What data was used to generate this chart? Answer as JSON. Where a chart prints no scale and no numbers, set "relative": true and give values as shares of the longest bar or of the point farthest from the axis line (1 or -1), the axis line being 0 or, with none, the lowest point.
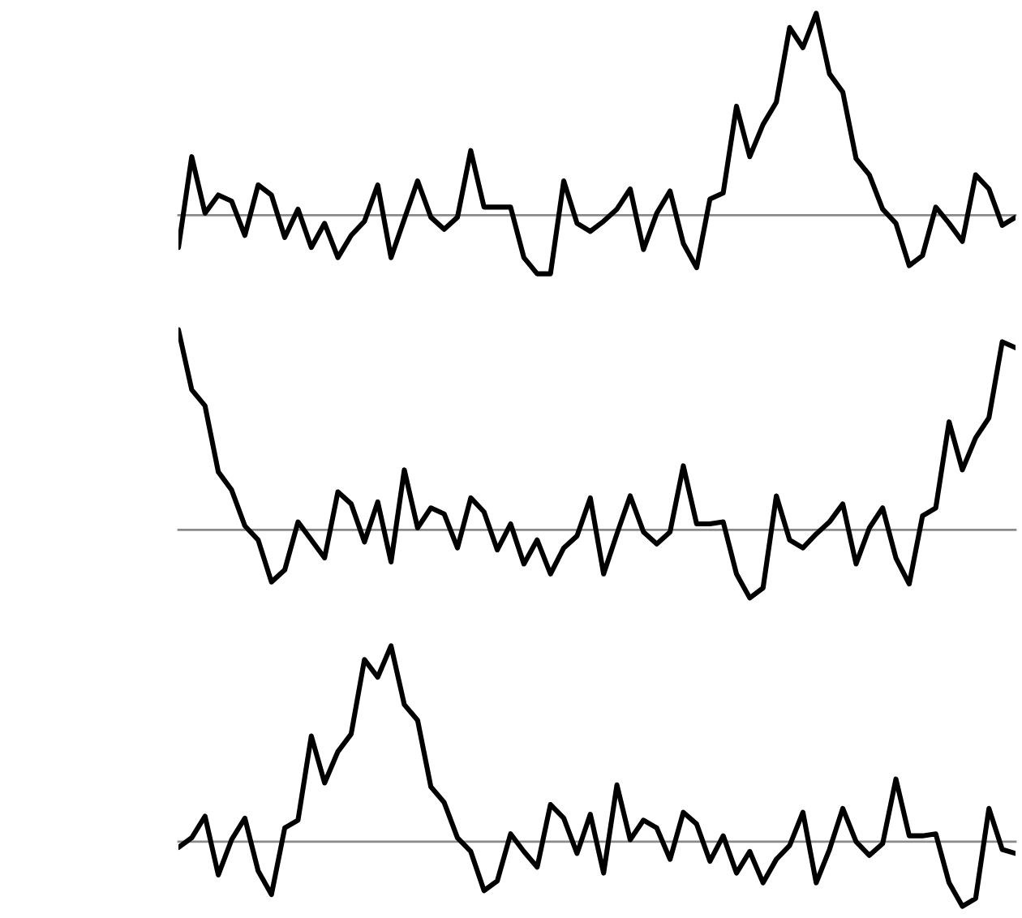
{
  "chart_data": [
    {
      "type": "line",
      "relative": true,
      "color": "#000000",
      "categories": [
        null,
        null,
        null,
        null,
        null,
        null,
        null,
        null,
        null,
        null,
        null,
        null,
        null,
        null,
        null,
        null,
        null,
        null,
        null,
        null,
        null,
        null,
        null,
        null,
        null,
        null,
        null,
        null,
        null,
        null,
        null,
        null,
        null,
        null,
        null,
        null,
        null,
        null,
        null,
        null,
        null,
        null,
        null,
        null,
        null,
        null,
        null,
        null,
        null,
        null,
        null,
        null,
        null,
        null,
        null,
        null,
        null,
        null,
        null,
        null,
        null,
        null,
        null,
        null
      ],
      "values": [
        -0.16,
        0.29,
        0.01,
        0.1,
        0.07,
        -0.1,
        0.15,
        0.1,
        -0.11,
        0.03,
        -0.16,
        -0.04,
        -0.21,
        -0.1,
        -0.03,
        0.15,
        -0.21,
        -0.02,
        0.17,
        -0.01,
        -0.07,
        -0.01,
        0.32,
        0.04,
        0.04,
        0.04,
        -0.21,
        -0.29,
        -0.29,
        0.17,
        -0.04,
        -0.08,
        -0.03,
        0.03,
        0.13,
        -0.17,
        0.01,
        0.12,
        -0.14,
        -0.26,
        0.08,
        0.11,
        0.54,
        0.29,
        0.45,
        0.56,
        0.93,
        0.83,
        1,
        0.7,
        0.61,
        0.28,
        0.2,
        0.03,
        -0.04,
        -0.25,
        -0.2,
        0.04,
        -0.04,
        -0.13,
        0.2,
        0.13,
        -0.05,
        -0.01
      ]
    },
    {
      "type": "line",
      "relative": true,
      "color": "#000000",
      "categories": [
        null,
        null,
        null,
        null,
        null,
        null,
        null,
        null,
        null,
        null,
        null,
        null,
        null,
        null,
        null,
        null,
        null,
        null,
        null,
        null,
        null,
        null,
        null,
        null,
        null,
        null,
        null,
        null,
        null,
        null,
        null,
        null,
        null,
        null,
        null,
        null,
        null,
        null,
        null,
        null,
        null,
        null,
        null,
        null,
        null,
        null,
        null,
        null,
        null,
        null,
        null,
        null,
        null,
        null,
        null,
        null,
        null,
        null,
        null,
        null,
        null,
        null,
        null,
        null
      ],
      "values": [
        1,
        0.7,
        0.62,
        0.29,
        0.2,
        0.02,
        -0.05,
        -0.26,
        -0.2,
        0.04,
        -0.05,
        -0.14,
        0.19,
        0.13,
        -0.06,
        0.14,
        -0.16,
        0.3,
        0.01,
        0.11,
        0.08,
        -0.09,
        0.16,
        0.09,
        -0.1,
        0.03,
        -0.17,
        -0.05,
        -0.22,
        -0.09,
        -0.03,
        0.16,
        -0.22,
        -0.02,
        0.17,
        -0.01,
        -0.07,
        -0.01,
        0.32,
        0.03,
        0.03,
        0.04,
        -0.22,
        -0.34,
        -0.29,
        0.17,
        -0.05,
        -0.09,
        -0.02,
        0.04,
        0.13,
        -0.17,
        0.01,
        0.11,
        -0.14,
        -0.27,
        0.07,
        0.11,
        0.54,
        0.3,
        0.46,
        0.56,
        0.94,
        0.91
      ]
    },
    {
      "type": "line",
      "relative": true,
      "color": "#000000",
      "categories": [
        null,
        null,
        null,
        null,
        null,
        null,
        null,
        null,
        null,
        null,
        null,
        null,
        null,
        null,
        null,
        null,
        null,
        null,
        null,
        null,
        null,
        null,
        null,
        null,
        null,
        null,
        null,
        null,
        null,
        null,
        null,
        null,
        null,
        null,
        null,
        null,
        null,
        null,
        null,
        null,
        null,
        null,
        null,
        null,
        null,
        null,
        null,
        null,
        null,
        null,
        null,
        null,
        null,
        null,
        null,
        null,
        null,
        null,
        null,
        null,
        null,
        null,
        null,
        null
      ],
      "values": [
        -0.03,
        0.02,
        0.13,
        -0.17,
        0.01,
        0.12,
        -0.15,
        -0.27,
        0.07,
        0.11,
        0.54,
        0.3,
        0.46,
        0.55,
        0.93,
        0.84,
        1,
        0.7,
        0.62,
        0.28,
        0.2,
        0.02,
        -0.05,
        -0.25,
        -0.2,
        0.04,
        -0.05,
        -0.13,
        0.19,
        0.12,
        -0.06,
        0.14,
        -0.16,
        0.29,
        0.01,
        0.11,
        0.07,
        -0.09,
        0.15,
        0.09,
        -0.1,
        0.03,
        -0.16,
        -0.05,
        -0.21,
        -0.09,
        -0.02,
        0.15,
        -0.21,
        -0.04,
        0.17,
        0,
        -0.07,
        -0.01,
        0.32,
        0.03,
        0.03,
        0.04,
        -0.21,
        -0.33,
        -0.29,
        0.17,
        -0.04,
        -0.06
      ]
    }
  ]
}
